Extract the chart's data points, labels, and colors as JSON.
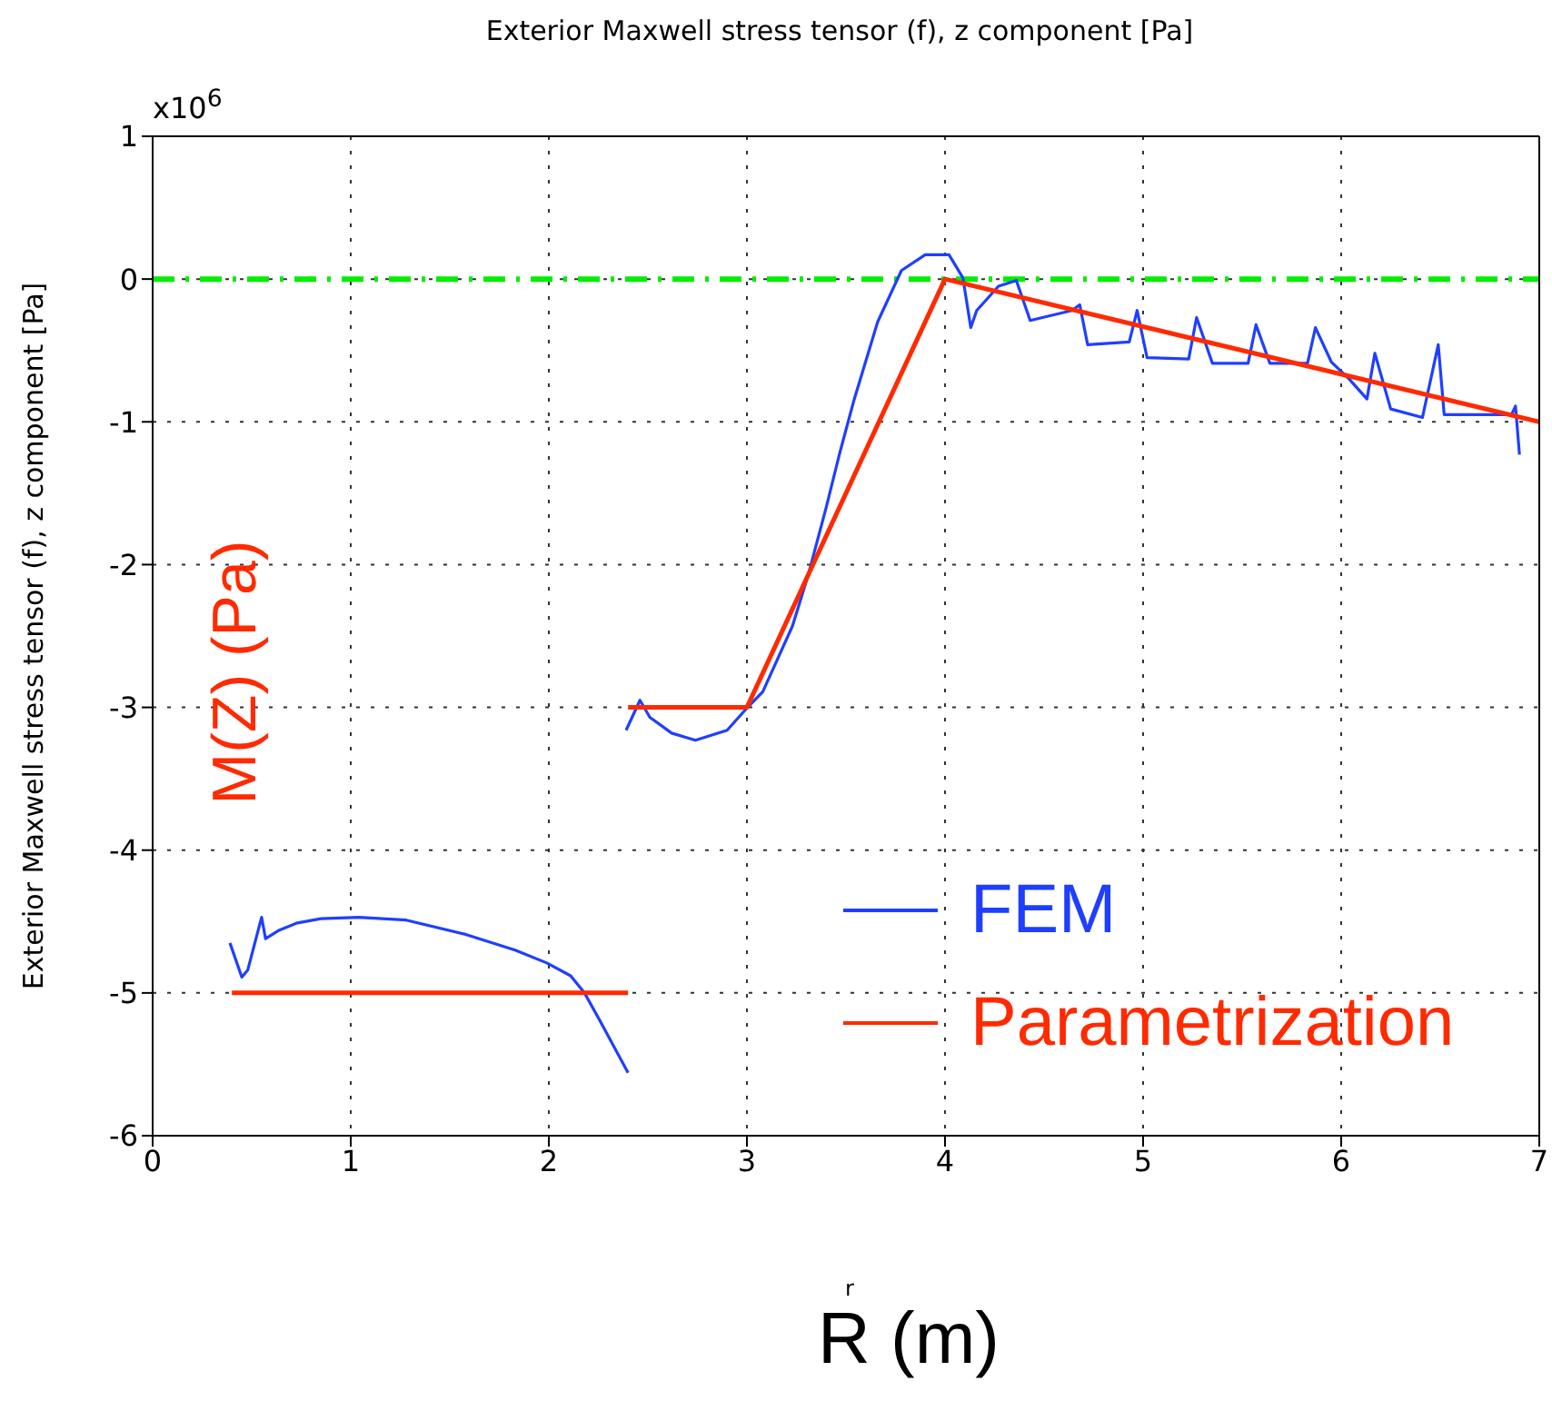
{
  "chart_data": {
    "type": "line",
    "title": "Exterior Maxwell stress tensor (f), z component [Pa]",
    "xlabel": "r",
    "ylabel": "Exterior Maxwell stress tensor (f), z component [Pa]",
    "annotations": [
      "x10$^{6}$",
      "M(Z)  (Pa)",
      "R (m)"
    ],
    "series": [
      {
        "name": "FEM",
        "color": "#1f3fff",
        "x": [
          0.39,
          0.45,
          0.48,
          0.55,
          0.57,
          0.64,
          0.73,
          0.85,
          1.04,
          1.28,
          1.58,
          1.83,
          1.99,
          2.11,
          2.18,
          2.26,
          2.4,
          null,
          2.39,
          2.46,
          2.51,
          2.62,
          2.74,
          2.9,
          2.99,
          3.08,
          3.23,
          3.31,
          3.4,
          3.47,
          3.54,
          3.66,
          3.78,
          3.9,
          4.02,
          4.09,
          4.13,
          4.16,
          4.27,
          4.36,
          4.43,
          4.64,
          4.68,
          4.72,
          4.93,
          4.97,
          5.02,
          5.23,
          5.27,
          5.35,
          5.53,
          5.57,
          5.64,
          5.83,
          5.87,
          5.95,
          6.04,
          6.13,
          6.17,
          6.25,
          6.41,
          6.49,
          6.52,
          6.86,
          6.88,
          6.9
        ],
        "values": [
          -4.65,
          -4.89,
          -4.84,
          -4.47,
          -4.62,
          -4.56,
          -4.51,
          -4.48,
          -4.47,
          -4.49,
          -4.59,
          -4.7,
          -4.79,
          -4.88,
          -5.0,
          -5.2,
          -5.56,
          null,
          -3.16,
          -2.95,
          -3.07,
          -3.18,
          -3.23,
          -3.16,
          -3.02,
          -2.89,
          -2.43,
          -2.07,
          -1.6,
          -1.21,
          -0.85,
          -0.3,
          0.06,
          0.17,
          0.17,
          0.01,
          -0.34,
          -0.22,
          -0.05,
          -0.01,
          -0.29,
          -0.22,
          -0.18,
          -0.46,
          -0.44,
          -0.22,
          -0.55,
          -0.56,
          -0.27,
          -0.59,
          -0.59,
          -0.32,
          -0.59,
          -0.59,
          -0.34,
          -0.58,
          -0.7,
          -0.84,
          -0.52,
          -0.91,
          -0.97,
          -0.46,
          -0.95,
          -0.95,
          -0.89,
          -1.23
        ]
      },
      {
        "name": "Parametrization",
        "color": "#ff2a00",
        "x": [
          0.4,
          2.4,
          null,
          2.4,
          3,
          4,
          7
        ],
        "values": [
          -5,
          -5,
          null,
          -3,
          -3,
          0,
          -1
        ]
      }
    ],
    "ref_lines": [
      {
        "axis": "y",
        "value": 0,
        "color": "#00ee00",
        "line_style": "dashed"
      }
    ],
    "xlim": [
      0,
      7
    ],
    "xticks": [
      0,
      1,
      2,
      3,
      4,
      5,
      6,
      7
    ],
    "ylim": [
      -6,
      1
    ],
    "yticks": [
      -6,
      -5,
      -4,
      -3,
      -2,
      -1,
      0,
      1
    ],
    "grid": true,
    "line_style": "solid",
    "marker": "none",
    "legend": "bottom right"
  }
}
